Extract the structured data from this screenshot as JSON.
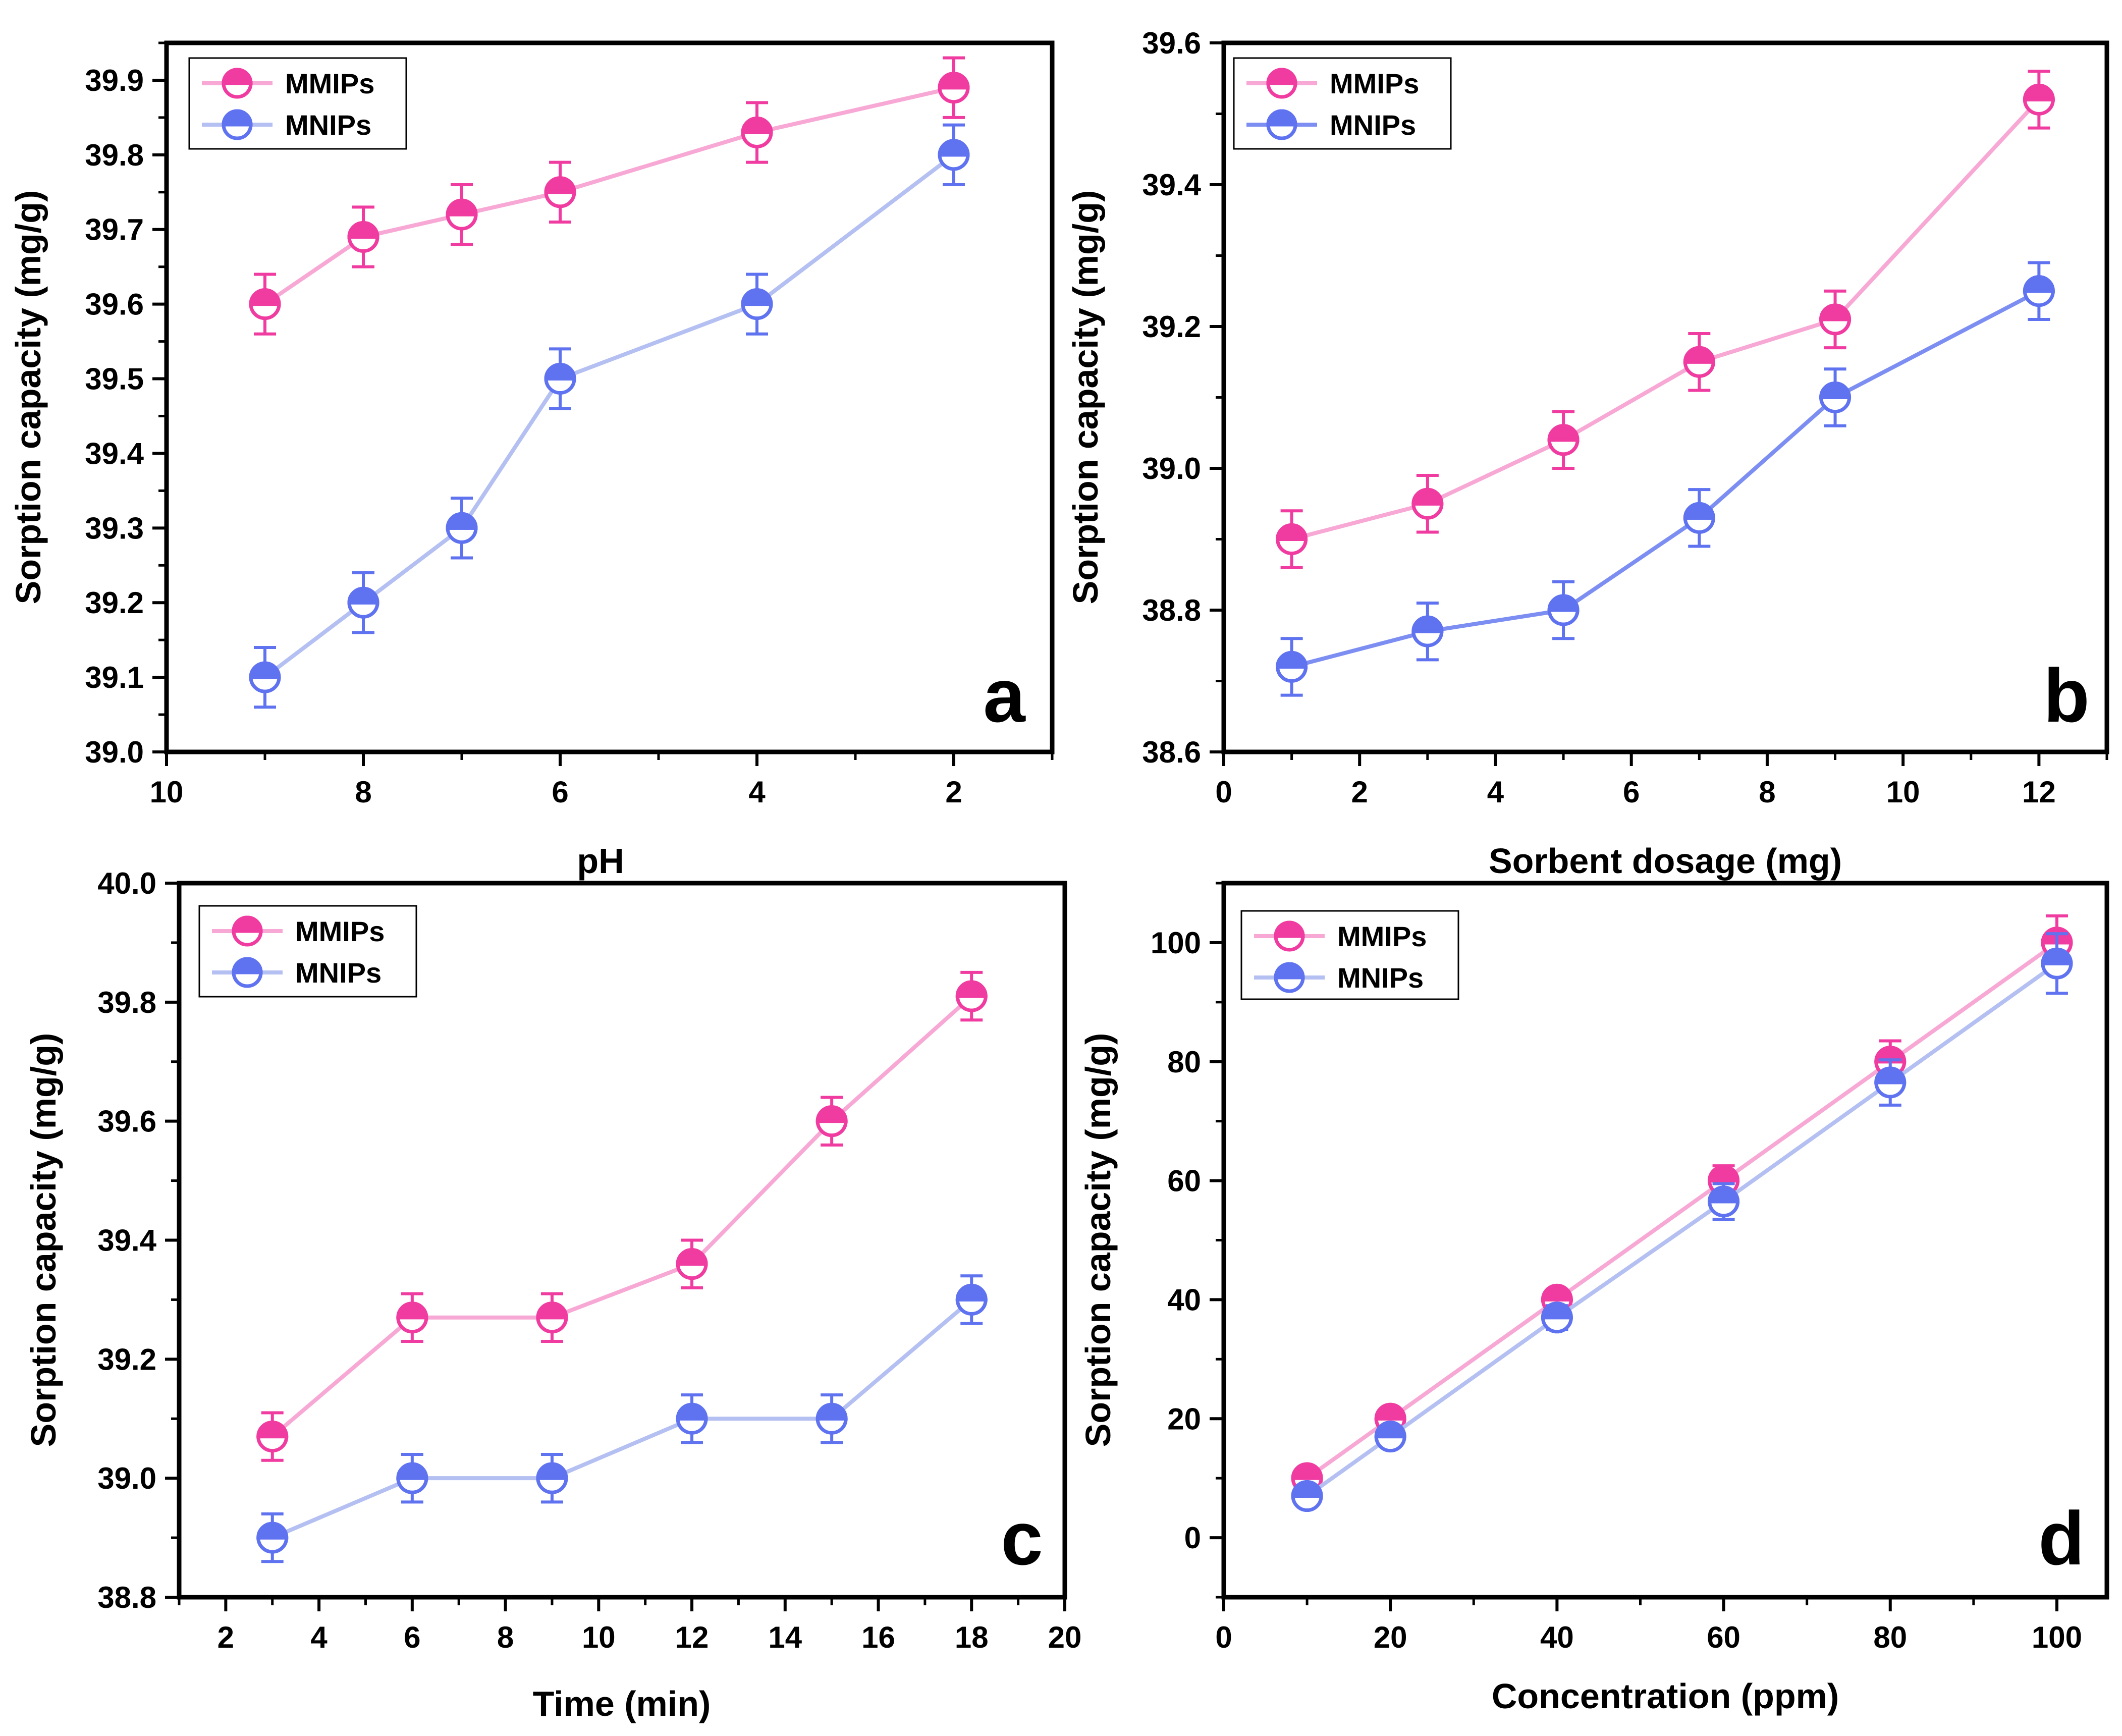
{
  "colors": {
    "MMIPs_line": "#f7a8d4",
    "MMIPs_marker": "#f03ba0",
    "MNIPs_line": "#b4bff2",
    "MNIPs_marker": "#5f72f0",
    "MNIPs_line_b": "#7d8ef2"
  },
  "chart_data": [
    {
      "type": "line",
      "panel_letter": "a",
      "xlabel": "pH",
      "ylabel": "Sorption capacity (mg/g)",
      "xlim": [
        10,
        1
      ],
      "ylim": [
        39.0,
        39.95
      ],
      "xticks": [
        "10",
        "8",
        "6",
        "4",
        "2"
      ],
      "yticks": [
        "39.0",
        "39.1",
        "39.2",
        "39.3",
        "39.4",
        "39.5",
        "39.6",
        "39.7",
        "39.8",
        "39.9"
      ],
      "legend": "top-left",
      "series": [
        {
          "name": "MMIPs",
          "x": [
            9,
            8,
            7,
            6,
            4,
            2
          ],
          "values": [
            39.6,
            39.69,
            39.72,
            39.75,
            39.83,
            39.89
          ],
          "error": [
            0.04,
            0.04,
            0.04,
            0.04,
            0.04,
            0.04
          ]
        },
        {
          "name": "MNIPs",
          "x": [
            9,
            8,
            7,
            6,
            4,
            2
          ],
          "values": [
            39.1,
            39.2,
            39.3,
            39.5,
            39.6,
            39.8
          ],
          "error": [
            0.04,
            0.04,
            0.04,
            0.04,
            0.04,
            0.04
          ]
        }
      ]
    },
    {
      "type": "line",
      "panel_letter": "b",
      "xlabel": "Sorbent dosage (mg)",
      "ylabel": "Sorption capacity (mg/g)",
      "xlim": [
        0,
        13
      ],
      "ylim": [
        38.6,
        39.6
      ],
      "xticks": [
        "0",
        "2",
        "4",
        "6",
        "8",
        "10",
        "12"
      ],
      "yticks": [
        "38.6",
        "38.8",
        "39.0",
        "39.2",
        "39.4",
        "39.6"
      ],
      "legend": "top-left",
      "series": [
        {
          "name": "MMIPs",
          "x": [
            1,
            3,
            5,
            7,
            9,
            12
          ],
          "values": [
            38.9,
            38.95,
            39.04,
            39.15,
            39.21,
            39.52
          ],
          "error": [
            0.04,
            0.04,
            0.04,
            0.04,
            0.04,
            0.04
          ]
        },
        {
          "name": "MNIPs",
          "x": [
            1,
            3,
            5,
            7,
            9,
            12
          ],
          "values": [
            38.72,
            38.77,
            38.8,
            38.93,
            39.1,
            39.25
          ],
          "error": [
            0.04,
            0.04,
            0.04,
            0.04,
            0.04,
            0.04
          ]
        }
      ]
    },
    {
      "type": "line",
      "panel_letter": "c",
      "xlabel": "Time (min)",
      "ylabel": "Sorption capacity (mg/g)",
      "xlim": [
        1,
        20
      ],
      "ylim": [
        38.8,
        40.0
      ],
      "xticks": [
        "2",
        "4",
        "6",
        "8",
        "10",
        "12",
        "14",
        "16",
        "18",
        "20"
      ],
      "yticks": [
        "38.8",
        "39.0",
        "39.2",
        "39.4",
        "39.6",
        "39.8",
        "40.0"
      ],
      "legend": "top-left",
      "series": [
        {
          "name": "MMIPs",
          "x": [
            3,
            6,
            9,
            12,
            15,
            18
          ],
          "values": [
            39.07,
            39.27,
            39.27,
            39.36,
            39.6,
            39.81
          ],
          "error": [
            0.04,
            0.04,
            0.04,
            0.04,
            0.04,
            0.04
          ]
        },
        {
          "name": "MNIPs",
          "x": [
            3,
            6,
            9,
            12,
            15,
            18
          ],
          "values": [
            38.9,
            39.0,
            39.0,
            39.1,
            39.1,
            39.3
          ],
          "error": [
            0.04,
            0.04,
            0.04,
            0.04,
            0.04,
            0.04
          ]
        }
      ]
    },
    {
      "type": "line",
      "panel_letter": "d",
      "xlabel": "Concentration (ppm)",
      "ylabel": "Sorption capacity (mg/g)",
      "xlim": [
        0,
        106
      ],
      "ylim": [
        -10,
        110
      ],
      "xticks": [
        "0",
        "20",
        "40",
        "60",
        "80",
        "100"
      ],
      "yticks": [
        "0",
        "20",
        "40",
        "60",
        "80",
        "100"
      ],
      "legend": "top-left",
      "series": [
        {
          "name": "MMIPs",
          "x": [
            10,
            20,
            40,
            60,
            80,
            100
          ],
          "values": [
            10,
            20,
            40,
            60,
            80,
            100
          ],
          "error": [
            0.8,
            1.2,
            1.5,
            2.5,
            3.5,
            4.5
          ]
        },
        {
          "name": "MNIPs",
          "x": [
            10,
            20,
            40,
            60,
            80,
            100
          ],
          "values": [
            7,
            17,
            37,
            56.5,
            76.5,
            96.5
          ],
          "error": [
            1.2,
            1.5,
            2.0,
            3.0,
            3.8,
            5.0
          ]
        }
      ]
    }
  ]
}
